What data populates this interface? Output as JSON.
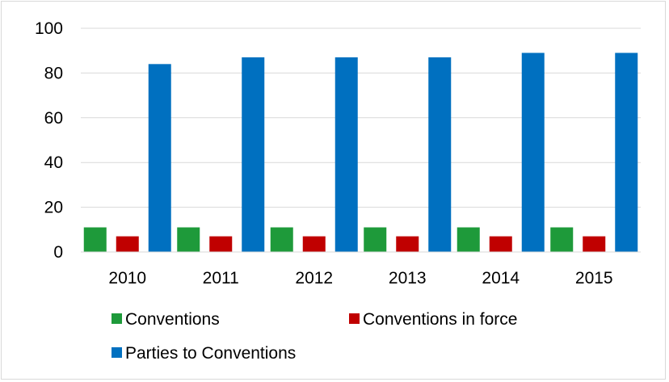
{
  "chart_data": {
    "type": "bar",
    "title": "",
    "xlabel": "",
    "ylabel": "",
    "categories": [
      "2010",
      "2011",
      "2012",
      "2013",
      "2014",
      "2015"
    ],
    "series": [
      {
        "name": "Conventions",
        "color": "#1e9a3a",
        "values": [
          11,
          11,
          11,
          11,
          11,
          11
        ]
      },
      {
        "name": "Conventions in force",
        "color": "#c00000",
        "values": [
          7,
          7,
          7,
          7,
          7,
          7
        ]
      },
      {
        "name": "Parties to Conventions",
        "color": "#0070c0",
        "values": [
          84,
          87,
          87,
          87,
          89,
          89
        ]
      }
    ],
    "ylim": [
      0,
      100
    ],
    "yticks": [
      "0",
      "20",
      "40",
      "60",
      "80",
      "100"
    ],
    "grid": true,
    "legend_position": "bottom"
  }
}
